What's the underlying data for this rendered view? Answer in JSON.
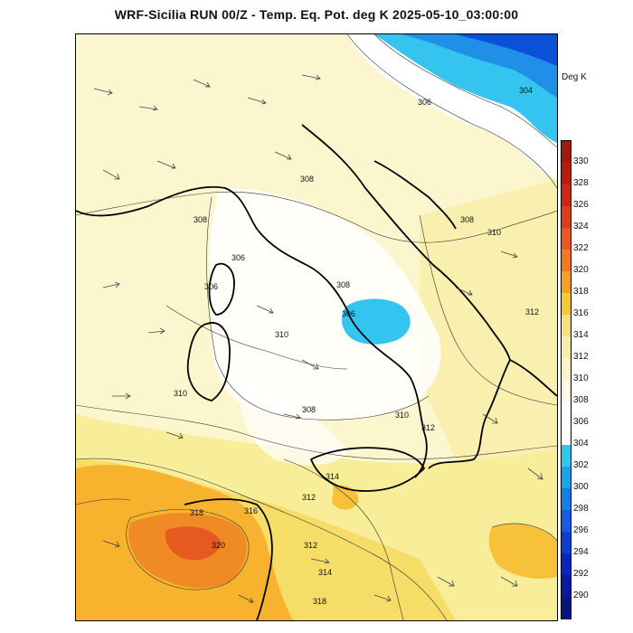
{
  "title": "WRF-Sicilia RUN 00/Z - Temp. Eq. Pot. deg K 2025-05-10_03:00:00",
  "colorbar": {
    "unit": "Deg K",
    "ticks": [
      "330",
      "328",
      "326",
      "324",
      "322",
      "320",
      "318",
      "316",
      "314",
      "312",
      "310",
      "308",
      "306",
      "304",
      "302",
      "300",
      "298",
      "296",
      "294",
      "292",
      "290"
    ],
    "colors": [
      "#9e1b10",
      "#b3200f",
      "#c92a12",
      "#d8401a",
      "#e55a1e",
      "#ef7a22",
      "#f6a02a",
      "#f8c63a",
      "#f7e07a",
      "#f8eeaa",
      "#faf4c8",
      "#fcf9e2",
      "#ffffff",
      "#ffffff",
      "#35c4f0",
      "#1fa0ee",
      "#1580e4",
      "#1060dc",
      "#0a40cc",
      "#0a28b8",
      "#071c9c",
      "#061480"
    ]
  },
  "contour_labels": [
    "306",
    "308",
    "306",
    "308",
    "306",
    "308",
    "310",
    "308",
    "310",
    "310",
    "312",
    "308",
    "310",
    "312",
    "314",
    "312",
    "318",
    "316",
    "320",
    "312",
    "314",
    "318",
    "306",
    "304"
  ]
}
